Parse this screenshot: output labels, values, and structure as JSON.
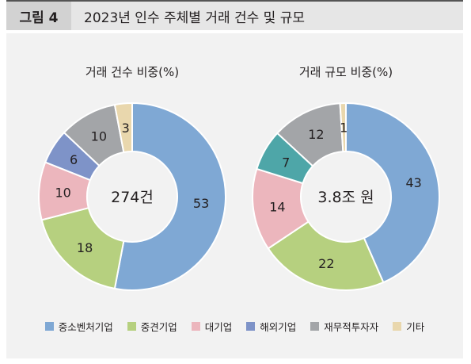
{
  "figure": {
    "label": "그림 4",
    "title": "2023년 인수 주체별 거래 건수 및 규모"
  },
  "colors": {
    "중소벤처기업": "#7fa8d4",
    "중견기업": "#b6d07f",
    "대기업": "#ecb6bd",
    "해외기업": "#7e93c8",
    "재무적투자자": "#a3a5a8",
    "기타": "#e9d7ad",
    "teal": "#4ea6a8"
  },
  "legend": [
    "중소벤처기업",
    "중견기업",
    "대기업",
    "해외기업",
    "재무적투자자",
    "기타"
  ],
  "chart_data": [
    {
      "type": "pie",
      "title": "거래 건수 비중(%)",
      "center_label": "274건",
      "categories": [
        "중소벤처기업",
        "중견기업",
        "대기업",
        "해외기업",
        "재무적투자자",
        "기타"
      ],
      "values": [
        53,
        18,
        10,
        6,
        10,
        3
      ]
    },
    {
      "type": "pie",
      "title": "거래 규모 비중(%)",
      "center_label": "3.8조 원",
      "categories": [
        "중소벤처기업",
        "중견기업",
        "대기업",
        "해외기업",
        "재무적투자자",
        "기타"
      ],
      "values": [
        43,
        22,
        14,
        7,
        12,
        1
      ]
    }
  ]
}
